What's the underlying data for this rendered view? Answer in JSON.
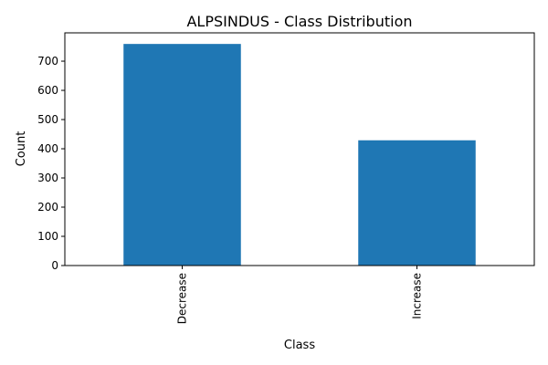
{
  "chart_data": {
    "type": "bar",
    "title": "ALPSINDUS - Class Distribution",
    "xlabel": "Class",
    "ylabel": "Count",
    "categories": [
      "Decrease",
      "Increase"
    ],
    "values": [
      759,
      429
    ],
    "ylim": [
      0,
      797
    ],
    "yticks": [
      0,
      100,
      200,
      300,
      400,
      500,
      600,
      700
    ],
    "grid": false,
    "bar_color": "#1f77b4"
  }
}
